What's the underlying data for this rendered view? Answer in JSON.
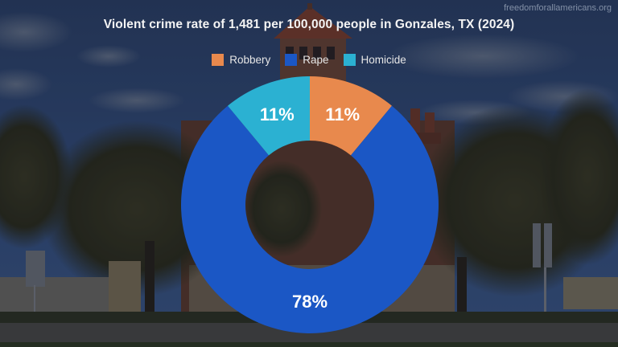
{
  "watermark": "freedomforallamericans.org",
  "chart_data": {
    "type": "pie",
    "variant": "donut",
    "title": "Violent crime rate of 1,481 per 100,000 people in Gonzales, TX (2024)",
    "categories": [
      "Robbery",
      "Rape",
      "Homicide"
    ],
    "values": [
      11,
      78,
      11
    ],
    "value_labels": [
      "11%",
      "78%",
      "11%"
    ],
    "colors": [
      "#E8894D",
      "#1B57C5",
      "#2BB1D2"
    ],
    "legend_position": "top",
    "start_angle": "12 o'clock, clockwise",
    "xlabel": "",
    "ylabel": ""
  },
  "legend": {
    "items": [
      {
        "label": "Robbery",
        "color": "#E8894D"
      },
      {
        "label": "Rape",
        "color": "#1B57C5"
      },
      {
        "label": "Homicide",
        "color": "#2BB1D2"
      }
    ]
  }
}
